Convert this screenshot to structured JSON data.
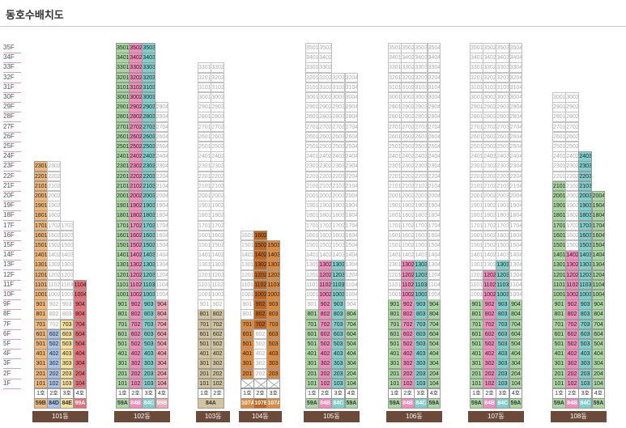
{
  "title": "동호수배치도",
  "floor_labels": [
    "35F",
    "34F",
    "33F",
    "32F",
    "31F",
    "30F",
    "29F",
    "28F",
    "27F",
    "26F",
    "25F",
    "24F",
    "23F",
    "22F",
    "21F",
    "20F",
    "19F",
    "18F",
    "17F",
    "16F",
    "15F",
    "14F",
    "13F",
    "12F",
    "11F",
    "10F",
    "9F",
    "8F",
    "7F",
    "6F",
    "5F",
    "4F",
    "3F",
    "2F",
    "1F"
  ],
  "colors": {
    "59B": "#f0b878",
    "84D": "#a9c4ea",
    "84E": "#f7e29a",
    "99A": "#e86f78",
    "59A": "#a8d8a0",
    "84B": "#f28cbc",
    "84C": "#7fd0cc",
    "99B": "#f4a8b8",
    "84A": "#d2c49c",
    "107A": "#e08a3c",
    "107B": "#c0661e"
  },
  "buildings": [
    {
      "id": "b101",
      "name": "101동",
      "hoh_labels": [
        "1호",
        "2호",
        "3호",
        "4호"
      ],
      "types": [
        "59B",
        "84D",
        "84E",
        "99A"
      ],
      "lines": [
        {
          "n": 1,
          "max": 23,
          "assigned": [
            1,
            23
          ],
          "type": "59B"
        },
        {
          "n": 2,
          "max": 23,
          "assigned": [
            1,
            6
          ],
          "type": "84D"
        },
        {
          "n": 3,
          "max": 17,
          "assigned": [
            1,
            7
          ],
          "type": "84E"
        },
        {
          "n": 4,
          "max": 11,
          "assigned": [
            1,
            11
          ],
          "type": "99A"
        }
      ]
    },
    {
      "id": "b102",
      "name": "102동",
      "hoh_labels": [
        "1호",
        "2호",
        "3호",
        "4호"
      ],
      "types": [
        "59A",
        "84B",
        "84C",
        "99B"
      ],
      "lines": [
        {
          "n": 1,
          "max": 35,
          "assigned": [
            1,
            35
          ],
          "type": "59A"
        },
        {
          "n": 2,
          "max": 35,
          "assigned": [
            1,
            35
          ],
          "type": "84B"
        },
        {
          "n": 3,
          "max": 35,
          "assigned": [
            1,
            35
          ],
          "type": "84C"
        },
        {
          "n": 4,
          "max": 29,
          "assigned": [
            1,
            9
          ],
          "type": "99B"
        }
      ]
    },
    {
      "id": "b103",
      "name": "103동",
      "hoh_labels": [
        "1호",
        "2호"
      ],
      "types": [
        "84A"
      ],
      "types_merged": true,
      "lines": [
        {
          "n": 1,
          "max": 33,
          "assigned": [
            1,
            8
          ],
          "type": "84A"
        },
        {
          "n": 2,
          "max": 33,
          "assigned": [
            1,
            8
          ],
          "type": "84A"
        }
      ]
    },
    {
      "id": "b104",
      "name": "104동",
      "hoh_labels": [
        "1호",
        "2호",
        "3호"
      ],
      "types": [
        "107A",
        "107B",
        "107A"
      ],
      "first_floor_empty": true,
      "lines": [
        {
          "n": 1,
          "max": 16,
          "assigned": [
            2,
            7
          ],
          "type": "107A",
          "start": 2
        },
        {
          "n": 2,
          "max": 16,
          "assigned": [
            7,
            16
          ],
          "type": "107B",
          "start": 2
        },
        {
          "n": 3,
          "max": 15,
          "assigned": [
            2,
            15
          ],
          "type": "107A",
          "start": 2
        }
      ]
    },
    {
      "id": "b105",
      "name": "105동",
      "hoh_labels": [
        "1호",
        "2호",
        "3호",
        "4호"
      ],
      "types": [
        "59A",
        "84B",
        "84C",
        "59A"
      ],
      "lines": [
        {
          "n": 1,
          "max": 35,
          "assigned": [
            1,
            8
          ],
          "type": "59A"
        },
        {
          "n": 2,
          "max": 35,
          "assigned": [
            1,
            13
          ],
          "type": "84B"
        },
        {
          "n": 3,
          "max": 32,
          "assigned": [
            1,
            13
          ],
          "type": "84C"
        },
        {
          "n": 4,
          "max": 32,
          "assigned": [
            1,
            8
          ],
          "type": "59A"
        }
      ]
    },
    {
      "id": "b106",
      "name": "106동",
      "hoh_labels": [
        "1호",
        "2호",
        "3호",
        "4호"
      ],
      "types": [
        "59A",
        "84B",
        "84C",
        "59A"
      ],
      "lines": [
        {
          "n": 1,
          "max": 35,
          "assigned": [
            1,
            9
          ],
          "type": "59A"
        },
        {
          "n": 2,
          "max": 35,
          "assigned": [
            1,
            13
          ],
          "type": "84B"
        },
        {
          "n": 3,
          "max": 35,
          "assigned": [
            1,
            13
          ],
          "type": "84C"
        },
        {
          "n": 4,
          "max": 35,
          "assigned": [
            1,
            9
          ],
          "type": "59A"
        }
      ]
    },
    {
      "id": "b107",
      "name": "107동",
      "hoh_labels": [
        "1호",
        "2호",
        "3호",
        "4호"
      ],
      "types": [
        "59A",
        "84B",
        "84C",
        "59A"
      ],
      "lines": [
        {
          "n": 1,
          "max": 35,
          "assigned": [
            1,
            9
          ],
          "type": "59A"
        },
        {
          "n": 2,
          "max": 35,
          "assigned": [
            1,
            12
          ],
          "type": "84B"
        },
        {
          "n": 3,
          "max": 35,
          "assigned": [
            1,
            13
          ],
          "type": "84C"
        },
        {
          "n": 4,
          "max": 35,
          "assigned": [
            1,
            9
          ],
          "type": "59A"
        }
      ]
    },
    {
      "id": "b108",
      "name": "108동",
      "hoh_labels": [
        "1호",
        "2호",
        "3호",
        "4호"
      ],
      "types": [
        "59A",
        "84B",
        "84C",
        "59A"
      ],
      "lines": [
        {
          "n": 1,
          "max": 30,
          "assigned": [
            1,
            21
          ],
          "type": "59A"
        },
        {
          "n": 2,
          "max": 30,
          "assigned": [
            1,
            14
          ],
          "type": "84B"
        },
        {
          "n": 3,
          "max": 24,
          "assigned": [
            1,
            24
          ],
          "type": "84C"
        },
        {
          "n": 4,
          "max": 20,
          "assigned": [
            1,
            20
          ],
          "type": "59A"
        }
      ]
    }
  ]
}
